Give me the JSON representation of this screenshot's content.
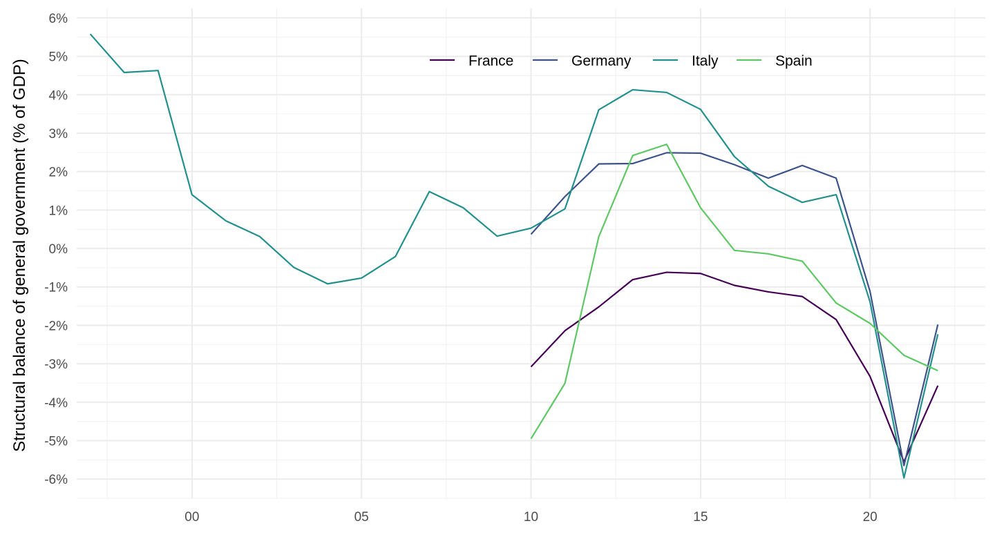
{
  "chart_data": {
    "type": "line",
    "ylabel": "Structural balance of general government (% of GDP)",
    "xlim": [
      1996.6,
      2023.4
    ],
    "ylim": [
      -6.5,
      6.25
    ],
    "x_ticks": [
      {
        "value": 2000,
        "label": "00"
      },
      {
        "value": 2005,
        "label": "05"
      },
      {
        "value": 2010,
        "label": "10"
      },
      {
        "value": 2015,
        "label": "15"
      },
      {
        "value": 2020,
        "label": "20"
      }
    ],
    "y_ticks": [
      {
        "value": 6,
        "label": "6%"
      },
      {
        "value": 5,
        "label": "5%"
      },
      {
        "value": 4,
        "label": "4%"
      },
      {
        "value": 3,
        "label": "3%"
      },
      {
        "value": 2,
        "label": "2%"
      },
      {
        "value": 1,
        "label": "1%"
      },
      {
        "value": 0,
        "label": "0%"
      },
      {
        "value": -1,
        "label": "-1%"
      },
      {
        "value": -2,
        "label": "-2%"
      },
      {
        "value": -3,
        "label": "-3%"
      },
      {
        "value": -4,
        "label": "-4%"
      },
      {
        "value": -5,
        "label": "-5%"
      },
      {
        "value": -6,
        "label": "-6%"
      }
    ],
    "grid": true,
    "legend_position": "top",
    "series": [
      {
        "name": "France",
        "color": "#440154",
        "x": [
          2010,
          2011,
          2012,
          2013,
          2014,
          2015,
          2016,
          2017,
          2018,
          2019,
          2020,
          2021,
          2022
        ],
        "y": [
          -3.08,
          -2.14,
          -1.52,
          -0.81,
          -0.62,
          -0.65,
          -0.96,
          -1.13,
          -1.25,
          -1.85,
          -3.33,
          -5.55,
          -3.57
        ]
      },
      {
        "name": "Germany",
        "color": "#3B528B",
        "x": [
          2010,
          2011,
          2012,
          2013,
          2014,
          2015,
          2016,
          2017,
          2018,
          2019,
          2020,
          2021,
          2022
        ],
        "y": [
          0.37,
          1.35,
          2.2,
          2.21,
          2.49,
          2.48,
          2.18,
          1.83,
          2.16,
          1.83,
          -1.12,
          -5.65,
          -1.98
        ]
      },
      {
        "name": "Italy",
        "color": "#21908C",
        "x": [
          1997,
          1998,
          1999,
          2000,
          2001,
          2002,
          2003,
          2004,
          2005,
          2006,
          2007,
          2008,
          2009,
          2010,
          2011,
          2012,
          2013,
          2014,
          2015,
          2016,
          2017,
          2018,
          2019,
          2020,
          2021,
          2022
        ],
        "y": [
          5.58,
          4.58,
          4.63,
          1.4,
          0.72,
          0.31,
          -0.49,
          -0.92,
          -0.77,
          -0.21,
          1.48,
          1.06,
          0.32,
          0.53,
          1.03,
          3.61,
          4.13,
          4.06,
          3.62,
          2.39,
          1.62,
          1.2,
          1.4,
          -1.39,
          -5.97,
          -2.23
        ]
      },
      {
        "name": "Spain",
        "color": "#5DC863",
        "x": [
          2010,
          2011,
          2012,
          2013,
          2014,
          2015,
          2016,
          2017,
          2018,
          2019,
          2020,
          2021,
          2022
        ],
        "y": [
          -4.95,
          -3.51,
          0.31,
          2.42,
          2.71,
          1.06,
          -0.05,
          -0.14,
          -0.33,
          -1.42,
          -1.95,
          -2.78,
          -3.18
        ]
      }
    ]
  }
}
